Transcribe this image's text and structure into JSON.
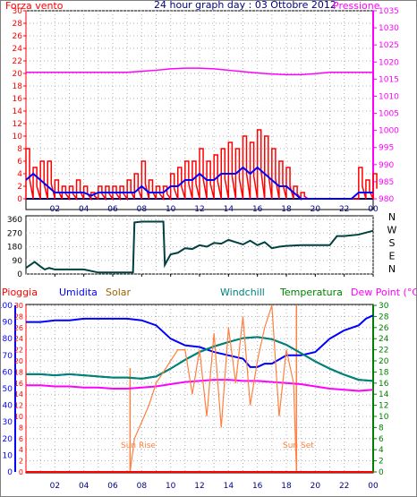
{
  "chart_data": [
    {
      "type": "line",
      "title": "24 hour graph day : 03 Ottobre 2012",
      "left_label": "Forza vento",
      "right_label": "Pressione",
      "x_ticks": [
        "02",
        "04",
        "06",
        "08",
        "10",
        "12",
        "14",
        "16",
        "18",
        "20",
        "22",
        "00"
      ],
      "y_left_ticks": [
        "0",
        "2",
        "4",
        "6",
        "8",
        "10",
        "12",
        "14",
        "16",
        "18",
        "20",
        "22",
        "24",
        "26",
        "28",
        "30"
      ],
      "y_left_range": [
        0,
        30
      ],
      "y_right_ticks": [
        "980",
        "985",
        "990",
        "995",
        "1000",
        "1005",
        "1010",
        "1015",
        "1020",
        "1025",
        "1030",
        "1035"
      ],
      "y_right_range": [
        980,
        1035
      ],
      "grid": true,
      "colors": {
        "gust": "#ff0000",
        "wind": "#0000ff",
        "pressure": "#ff00ff",
        "left_axis": "#ff0000",
        "right_axis": "#ff00ff",
        "x_axis": "#000080"
      },
      "series": [
        {
          "name": "gust",
          "x": [
            0,
            0.5,
            1,
            1.5,
            2,
            2.5,
            3,
            3.5,
            4,
            4.5,
            5,
            5.5,
            6,
            6.5,
            7,
            7.5,
            8,
            8.5,
            9,
            9.5,
            10,
            10.5,
            11,
            11.5,
            12,
            12.5,
            13,
            13.5,
            14,
            14.5,
            15,
            15.5,
            16,
            16.5,
            17,
            17.5,
            18,
            18.5,
            19,
            19.5,
            20,
            20.5,
            21,
            21.5,
            22,
            22.5,
            23,
            23.5,
            24
          ],
          "values": [
            8,
            5,
            6,
            6,
            3,
            2,
            2,
            3,
            2,
            1,
            2,
            2,
            2,
            2,
            3,
            4,
            6,
            3,
            2,
            2,
            4,
            5,
            6,
            6,
            8,
            6,
            7,
            8,
            9,
            8,
            10,
            9,
            11,
            10,
            8,
            6,
            5,
            2,
            1,
            0,
            0,
            0,
            0,
            0,
            0,
            0,
            5,
            3,
            4
          ]
        },
        {
          "name": "wind",
          "x": [
            0,
            0.5,
            1,
            1.5,
            2,
            2.5,
            3,
            3.5,
            4,
            4.5,
            5,
            5.5,
            6,
            6.5,
            7,
            7.5,
            8,
            8.5,
            9,
            9.5,
            10,
            10.5,
            11,
            11.5,
            12,
            12.5,
            13,
            13.5,
            14,
            14.5,
            15,
            15.5,
            16,
            16.5,
            17,
            17.5,
            18,
            18.5,
            19,
            19.5,
            20,
            20.5,
            21,
            21.5,
            22,
            22.5,
            23,
            23.5,
            24
          ],
          "values": [
            3,
            4,
            3,
            2,
            1,
            1,
            1,
            1,
            1,
            0.5,
            1,
            1,
            1,
            1,
            1,
            1,
            2,
            1,
            1,
            1,
            2,
            2,
            3,
            3,
            4,
            3,
            3,
            4,
            4,
            4,
            5,
            4,
            5,
            4,
            3,
            2,
            2,
            1,
            0,
            0,
            0,
            0,
            0,
            0,
            0,
            0,
            1,
            1,
            1
          ]
        },
        {
          "name": "pressure",
          "x": [
            0,
            1,
            2,
            3,
            4,
            5,
            6,
            7,
            8,
            9,
            10,
            11,
            12,
            13,
            14,
            15,
            16,
            17,
            18,
            19,
            20,
            21,
            22,
            23,
            24
          ],
          "values": [
            1017,
            1017,
            1017,
            1017,
            1017,
            1017,
            1017,
            1017,
            1017.3,
            1017.6,
            1018,
            1018.2,
            1018.2,
            1018,
            1017.6,
            1017.2,
            1016.8,
            1016.5,
            1016.3,
            1016.3,
            1016.6,
            1017,
            1017,
            1017,
            1017
          ]
        }
      ]
    },
    {
      "type": "line",
      "title": "",
      "y_left_ticks": [
        "0",
        "90",
        "180",
        "270",
        "360"
      ],
      "y_left_range": [
        0,
        360
      ],
      "right_labels": [
        "N",
        "W",
        "S",
        "E",
        "N"
      ],
      "x_ticks": [
        "02",
        "04",
        "06",
        "08",
        "10",
        "12",
        "14",
        "16",
        "18",
        "20",
        "22",
        "00"
      ],
      "grid": true,
      "colors": {
        "line": "#004040"
      },
      "series": [
        {
          "name": "direction",
          "x": [
            0,
            0.3,
            0.6,
            1,
            1.3,
            1.6,
            2,
            3,
            4,
            5,
            6,
            7,
            7.4,
            7.5,
            8,
            9,
            9.5,
            9.6,
            10,
            10.5,
            11,
            11.5,
            12,
            12.5,
            13,
            13.5,
            14,
            14.5,
            15,
            15.5,
            16,
            16.5,
            17,
            17.5,
            18,
            19,
            20,
            21,
            21.5,
            22,
            23,
            24
          ],
          "values": [
            40,
            60,
            80,
            50,
            30,
            40,
            30,
            30,
            30,
            10,
            10,
            10,
            10,
            340,
            345,
            345,
            345,
            60,
            130,
            140,
            170,
            165,
            190,
            180,
            205,
            200,
            225,
            210,
            195,
            220,
            190,
            210,
            170,
            180,
            185,
            190,
            190,
            190,
            250,
            250,
            260,
            285
          ]
        }
      ]
    },
    {
      "type": "line",
      "title": "",
      "labels": {
        "rain": "Pioggia",
        "humidity": "Umidita",
        "solar": "Solar",
        "windchill": "Windchill",
        "temperature": "Temperatura",
        "dewpoint": "Dew Point (°C)"
      },
      "annotations": [
        "Sun Rise",
        "Sun Set"
      ],
      "x_ticks": [
        "02",
        "04",
        "06",
        "08",
        "10",
        "12",
        "14",
        "16",
        "18",
        "20",
        "22",
        "00"
      ],
      "y_left_ticks": [
        "0",
        "10",
        "20",
        "30",
        "40",
        "50",
        "60",
        "70",
        "80",
        "90",
        "100"
      ],
      "y_left_range": [
        0,
        100
      ],
      "y_mid_ticks": [
        "0",
        "2",
        "4",
        "6",
        "8",
        "10",
        "12",
        "14",
        "16",
        "18",
        "20",
        "22",
        "24",
        "26",
        "28",
        "30"
      ],
      "y_mid_range": [
        0,
        30
      ],
      "y_right_ticks": [
        "0",
        "2",
        "4",
        "6",
        "8",
        "10",
        "12",
        "14",
        "16",
        "18",
        "20",
        "22",
        "24",
        "26",
        "28",
        "30"
      ],
      "y_right_range": [
        0,
        30
      ],
      "grid": true,
      "colors": {
        "rain": "#ff0000",
        "humidity": "#0000ff",
        "solar": "#ff8040",
        "windchill": "#008080",
        "temperature": "#008000",
        "dewpoint": "#ff00ff",
        "right_axis": "#008000",
        "mid_axis": "#ff0000",
        "left_axis": "#0000ff"
      },
      "series": [
        {
          "name": "humidity",
          "x": [
            0,
            1,
            2,
            3,
            4,
            5,
            6,
            7,
            8,
            9,
            10,
            11,
            12,
            13,
            14,
            15,
            15.5,
            16,
            16.5,
            17,
            18,
            19,
            20,
            21,
            22,
            23,
            23.5,
            24
          ],
          "values": [
            90,
            90,
            91,
            91,
            92,
            92,
            92,
            92,
            91,
            88,
            80,
            76,
            75,
            72,
            70,
            68,
            63,
            63,
            65,
            65,
            70,
            70,
            72,
            80,
            85,
            88,
            92,
            94
          ]
        },
        {
          "name": "temperature",
          "x": [
            0,
            1,
            2,
            3,
            4,
            5,
            6,
            7,
            8,
            9,
            10,
            11,
            12,
            13,
            14,
            15,
            16,
            17,
            18,
            19,
            20,
            21,
            22,
            23,
            24
          ],
          "values": [
            17.6,
            17.6,
            17.4,
            17.6,
            17.4,
            17.2,
            17,
            17,
            16.8,
            17.2,
            18.6,
            20.2,
            21.6,
            22.6,
            23.4,
            24.1,
            24.3,
            23.9,
            22.9,
            21.4,
            19.9,
            18.6,
            17.5,
            16.6,
            16.4
          ]
        },
        {
          "name": "windchill",
          "x": [
            0,
            1,
            2,
            3,
            4,
            5,
            6,
            7,
            8,
            9,
            10,
            11,
            12,
            13,
            14,
            15,
            16,
            17,
            18,
            19,
            20,
            21,
            22,
            23,
            24
          ],
          "values": [
            17.6,
            17.6,
            17.4,
            17.6,
            17.4,
            17.2,
            17,
            17,
            16.8,
            17.2,
            18.6,
            20.2,
            21.6,
            22.6,
            23.4,
            24.1,
            24.3,
            23.9,
            22.9,
            21.4,
            19.9,
            18.6,
            17.5,
            16.6,
            16.4
          ]
        },
        {
          "name": "dewpoint",
          "x": [
            0,
            1,
            2,
            3,
            4,
            5,
            6,
            7,
            8,
            9,
            10,
            11,
            12,
            13,
            14,
            15,
            16,
            17,
            18,
            19,
            20,
            21,
            22,
            23,
            24
          ],
          "values": [
            15.6,
            15.6,
            15.4,
            15.4,
            15.2,
            15.2,
            15,
            15,
            15.2,
            15.4,
            15.8,
            16.2,
            16.4,
            16.6,
            16.6,
            16.4,
            16.4,
            16.2,
            16,
            15.8,
            15.4,
            15,
            14.8,
            14.6,
            14.8
          ]
        },
        {
          "name": "solar",
          "x": [
            7.2,
            7.5,
            8,
            8.5,
            9,
            9.5,
            10,
            10.5,
            11,
            11.5,
            12,
            12.5,
            13,
            13.5,
            14,
            14.5,
            15,
            15.5,
            16,
            16.5,
            17,
            17.5,
            18,
            18.5,
            18.7
          ],
          "values": [
            0,
            6,
            9,
            12,
            16,
            18,
            20,
            22,
            22,
            14,
            22,
            10,
            25,
            8,
            26,
            16,
            28,
            12,
            20,
            26,
            30,
            10,
            22,
            16,
            0
          ]
        },
        {
          "name": "rain",
          "x": [
            0,
            24
          ],
          "values": [
            0,
            0
          ]
        }
      ]
    }
  ]
}
